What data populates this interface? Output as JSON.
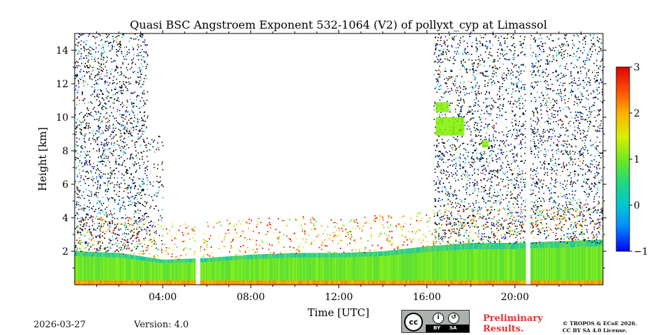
{
  "chart_data": {
    "type": "heatmap",
    "title": "Quasi BSC Angstroem Exponent 532-1064 (V2) of pollyxt_cyp at Limassol",
    "xlabel": "Time [UTC]",
    "ylabel": "Height [km]",
    "xlim_hours": [
      0,
      24
    ],
    "ylim_km": [
      0,
      15
    ],
    "x_ticks": [
      {
        "value": 4,
        "label": "04:00"
      },
      {
        "value": 8,
        "label": "08:00"
      },
      {
        "value": 12,
        "label": "12:00"
      },
      {
        "value": 16,
        "label": "16:00"
      },
      {
        "value": 20,
        "label": "20:00"
      }
    ],
    "y_ticks": [
      {
        "value": 2,
        "label": "2"
      },
      {
        "value": 4,
        "label": "4"
      },
      {
        "value": 6,
        "label": "6"
      },
      {
        "value": 8,
        "label": "8"
      },
      {
        "value": 10,
        "label": "10"
      },
      {
        "value": 12,
        "label": "12"
      },
      {
        "value": 14,
        "label": "14"
      }
    ],
    "colorbar": {
      "min": -1,
      "max": 3,
      "ticks": [
        {
          "value": 3,
          "label": "3"
        },
        {
          "value": 2,
          "label": "2"
        },
        {
          "value": 1,
          "label": "1"
        },
        {
          "value": 0,
          "label": "0"
        },
        {
          "value": -1,
          "label": "−1"
        }
      ],
      "colors": [
        "#0000ff",
        "#00a0ff",
        "#00d0a0",
        "#40e040",
        "#80f000",
        "#f0f000",
        "#ffa000",
        "#ff4000",
        "#e00000"
      ]
    },
    "data_gaps_hours": [
      [
        5.5,
        5.7
      ],
      [
        20.5,
        20.7
      ]
    ],
    "boundary_layer_top_km": [
      {
        "t": 0,
        "h": 2.0
      },
      {
        "t": 2,
        "h": 1.9
      },
      {
        "t": 4,
        "h": 1.5
      },
      {
        "t": 6,
        "h": 1.6
      },
      {
        "t": 8,
        "h": 1.8
      },
      {
        "t": 10,
        "h": 1.9
      },
      {
        "t": 12,
        "h": 1.9
      },
      {
        "t": 14,
        "h": 2.0
      },
      {
        "t": 16,
        "h": 2.3
      },
      {
        "t": 18,
        "h": 2.5
      },
      {
        "t": 20,
        "h": 2.5
      },
      {
        "t": 22,
        "h": 2.6
      },
      {
        "t": 24,
        "h": 2.7
      }
    ],
    "noise_regions": [
      {
        "t0": 0,
        "t1": 3.3,
        "h0": 2.0,
        "h1": 15,
        "density": 0.45
      },
      {
        "t0": 3.3,
        "t1": 4.0,
        "h0": 2.0,
        "h1": 9,
        "density": 0.2
      },
      {
        "t0": 16.3,
        "t1": 24,
        "h0": 2.5,
        "h1": 15,
        "density": 0.4
      }
    ],
    "cloud_patches": [
      {
        "t0": 16.4,
        "t1": 17.0,
        "h0": 10.3,
        "h1": 10.9,
        "value": 0.9
      },
      {
        "t0": 16.4,
        "t1": 17.7,
        "h0": 8.9,
        "h1": 10.0,
        "value": 1.0
      },
      {
        "t0": 18.5,
        "t1": 18.8,
        "h0": 8.2,
        "h1": 8.6,
        "value": 1.2
      }
    ]
  },
  "footer": {
    "date": "2026-03-27",
    "version": "Version: 4.0",
    "preliminary_line1": "Preliminary",
    "preliminary_line2": "Results.",
    "copyright_line1": "© TROPOS & ECoE 2026.",
    "copyright_line2": "CC BY SA 4.0 License.",
    "license_badge": {
      "cc": "cc",
      "by": "BY",
      "sa": "SA"
    }
  }
}
